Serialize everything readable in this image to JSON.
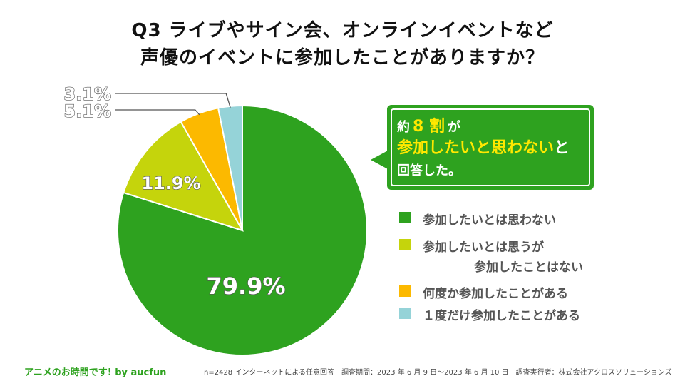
{
  "title": {
    "line1": "Q3  ライブやサイン会、オンラインイベントなど",
    "line2": "声優のイベントに参加したことがありますか？"
  },
  "callout": {
    "prefix": "約",
    "highlight1": "8 割",
    "suffix1": "が",
    "highlight2": "参加したいと思わない",
    "suffix2": "と",
    "line3": "回答した。"
  },
  "legend": [
    {
      "label": "参加したいとは思わない",
      "label2": "",
      "color": "#2ea21f"
    },
    {
      "label": "参加したいとは思うが",
      "label2": "参加したことはない",
      "color": "#c5d40c"
    },
    {
      "label": "何度か参加したことがある",
      "label2": "",
      "color": "#fcb900"
    },
    {
      "label": "１度だけ参加したことがある",
      "label2": "",
      "color": "#95d3d8"
    }
  ],
  "footer": {
    "brand": "アニメのお時間です! by aucfun",
    "note": "n=2428 インターネットによる任意回答　調査期間：2023 年 6 月 9 日～2023 年 6 月 10 日　調査実行者：株式会社アクロスソリューションズ"
  },
  "chart_data": {
    "type": "pie",
    "start": "top, clockwise",
    "slices": [
      {
        "name": "参加したいとは思わない",
        "value": 79.9,
        "label": "79.9%",
        "color": "#2ea21f"
      },
      {
        "name": "参加したいとは思うが参加したことはない",
        "value": 11.9,
        "label": "11.9%",
        "color": "#c5d40c"
      },
      {
        "name": "何度か参加したことがある",
        "value": 5.1,
        "label": "5.1%",
        "color": "#fcb900"
      },
      {
        "name": "１度だけ参加したことがある",
        "value": 3.1,
        "label": "3.1%",
        "color": "#95d3d8"
      }
    ]
  }
}
